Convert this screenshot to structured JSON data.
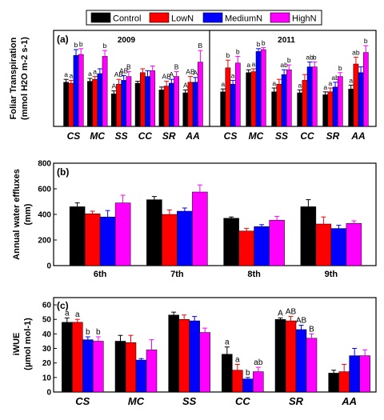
{
  "legend": {
    "items": [
      {
        "name": "Control",
        "color": "#000000"
      },
      {
        "name": "LowN",
        "color": "#ff0000"
      },
      {
        "name": "MediumN",
        "color": "#0000ff"
      },
      {
        "name": "HighN",
        "color": "#ff00ff"
      }
    ]
  },
  "chart_data": [
    {
      "type": "bar",
      "panel_label": "(a)",
      "ylabel_line1": "Foliar Transpiration",
      "ylabel_line2": "(mmol H2O m-2 s-1)",
      "ylim": [
        0,
        1.0
      ],
      "yticks": [],
      "subpanels": [
        {
          "title": "2009",
          "categories": [
            "CS",
            "MC",
            "SS",
            "CC",
            "SR",
            "AA"
          ],
          "series": [
            {
              "name": "Control",
              "values": [
                0.46,
                0.47,
                0.34,
                0.45,
                0.38,
                0.35
              ],
              "errors": [
                0.03,
                0.03,
                0.03,
                0.02,
                0.03,
                0.03
              ],
              "letters": [
                "a",
                "a",
                "A",
                "",
                "",
                "A"
              ]
            },
            {
              "name": "LowN",
              "values": [
                0.45,
                0.49,
                0.44,
                0.56,
                0.42,
                0.46
              ],
              "errors": [
                0.03,
                0.03,
                0.05,
                0.04,
                0.05,
                0.06
              ],
              "letters": [
                "a",
                "a",
                "AB",
                "",
                "AB",
                "AB"
              ]
            },
            {
              "name": "MediumN",
              "values": [
                0.74,
                0.55,
                0.48,
                0.52,
                0.45,
                0.46
              ],
              "errors": [
                0.06,
                0.05,
                0.05,
                0.06,
                0.04,
                0.05
              ],
              "letters": [
                "b",
                "",
                "AB",
                "",
                "A",
                "A"
              ]
            },
            {
              "name": "HighN",
              "values": [
                0.75,
                0.73,
                0.52,
                0.58,
                0.52,
                0.67
              ],
              "errors": [
                0.06,
                0.06,
                0.05,
                0.05,
                0.05,
                0.12
              ],
              "letters": [
                "b",
                "b",
                "B",
                "",
                "B",
                "B"
              ]
            }
          ]
        },
        {
          "title": "2011",
          "categories": [
            "CS",
            "MC",
            "SS",
            "CC",
            "SR",
            "AA"
          ],
          "series": [
            {
              "name": "Control",
              "values": [
                0.36,
                0.56,
                0.36,
                0.35,
                0.33,
                0.39
              ],
              "errors": [
                0.03,
                0.03,
                0.04,
                0.03,
                0.03,
                0.04
              ],
              "letters": [
                "a",
                "a",
                "a",
                "a",
                "a",
                "a"
              ]
            },
            {
              "name": "LowN",
              "values": [
                0.61,
                0.57,
                0.44,
                0.48,
                0.36,
                0.65
              ],
              "errors": [
                0.08,
                0.03,
                0.05,
                0.06,
                0.04,
                0.07
              ],
              "letters": [
                "b",
                "a",
                "",
                "",
                "a",
                "ab"
              ]
            },
            {
              "name": "MediumN",
              "values": [
                0.44,
                0.78,
                0.54,
                0.62,
                0.41,
                0.56
              ],
              "errors": [
                0.04,
                0.03,
                0.05,
                0.05,
                0.05,
                0.06
              ],
              "letters": [
                "a",
                "b",
                "ab",
                "ab",
                "ab",
                ""
              ]
            },
            {
              "name": "HighN",
              "values": [
                0.66,
                0.8,
                0.59,
                0.62,
                0.52,
                0.77
              ],
              "errors": [
                0.07,
                0.02,
                0.05,
                0.05,
                0.04,
                0.07
              ],
              "letters": [
                "b",
                "b",
                "b",
                "b",
                "b",
                "b"
              ]
            }
          ]
        }
      ]
    },
    {
      "type": "bar",
      "panel_label": "(b)",
      "ylabel_line1": "Annual water effluxes",
      "ylabel_line2": "(mm)",
      "ylim": [
        0,
        800
      ],
      "yticks": [
        0,
        200,
        400,
        600,
        800
      ],
      "categories": [
        "6th",
        "7th",
        "8th",
        "9th"
      ],
      "series": [
        {
          "name": "Control",
          "values": [
            460,
            515,
            370,
            460
          ],
          "errors": [
            30,
            25,
            10,
            55
          ]
        },
        {
          "name": "LowN",
          "values": [
            405,
            400,
            270,
            325
          ],
          "errors": [
            20,
            35,
            20,
            55
          ]
        },
        {
          "name": "MediumN",
          "values": [
            380,
            425,
            305,
            290
          ],
          "errors": [
            50,
            25,
            15,
            25
          ]
        },
        {
          "name": "HighN",
          "values": [
            490,
            575,
            355,
            330
          ],
          "errors": [
            60,
            55,
            30,
            20
          ]
        }
      ]
    },
    {
      "type": "bar",
      "panel_label": "(c)",
      "ylabel_line1": "iWUE",
      "ylabel_line2": "(µmol mol-1)",
      "ylim": [
        0,
        65
      ],
      "yticks": [
        0,
        10,
        20,
        30,
        40,
        50,
        60
      ],
      "categories": [
        "CS",
        "MC",
        "SS",
        "CC",
        "SR",
        "AA"
      ],
      "series": [
        {
          "name": "Control",
          "values": [
            48,
            35,
            53,
            26,
            50,
            13
          ],
          "errors": [
            3,
            4,
            2,
            5,
            1,
            2
          ],
          "letters": [
            "a",
            "",
            "",
            "a",
            "A",
            ""
          ]
        },
        {
          "name": "LowN",
          "values": [
            48,
            34,
            50,
            15,
            49,
            14
          ],
          "errors": [
            2,
            5,
            3,
            4,
            3,
            5
          ],
          "letters": [
            "a",
            "",
            "",
            "a",
            "AB",
            ""
          ]
        },
        {
          "name": "MediumN",
          "values": [
            36,
            22,
            49,
            9,
            43,
            25
          ],
          "errors": [
            2,
            1,
            3,
            1,
            3,
            5
          ],
          "letters": [
            "b",
            "",
            "",
            "b",
            "AB",
            ""
          ]
        },
        {
          "name": "HighN",
          "values": [
            35,
            29,
            41,
            14,
            37,
            25
          ],
          "errors": [
            3,
            7,
            3,
            3,
            3,
            4
          ],
          "letters": [
            "b",
            "",
            "",
            "ab",
            "B",
            ""
          ]
        }
      ]
    }
  ]
}
